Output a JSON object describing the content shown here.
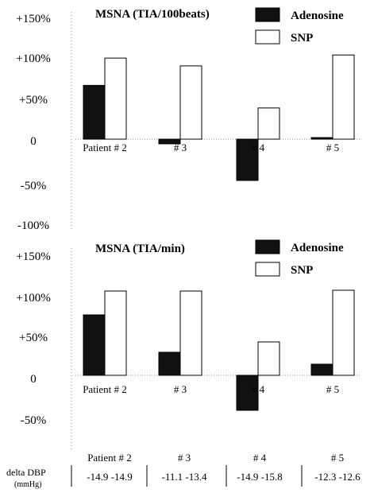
{
  "chart_data": [
    {
      "type": "bar",
      "title": "MSNA (TIA/100beats)",
      "categories": [
        "Patient # 2",
        "# 3",
        "# 4",
        "# 5"
      ],
      "series": [
        {
          "name": "Adenosine",
          "values": [
            69,
            -6,
            -53,
            2
          ]
        },
        {
          "name": "SNP",
          "values": [
            104,
            94,
            40,
            108
          ]
        }
      ],
      "yticks": [
        "+150%",
        "+100%",
        "+50%",
        "0",
        "-50%",
        "-100%"
      ],
      "ylim": [
        -100,
        150
      ],
      "legend": "top-right",
      "colors": {
        "Adenosine": "#111111",
        "SNP": "#ffffff"
      }
    },
    {
      "type": "bar",
      "title": "MSNA (TIA/min)",
      "categories": [
        "Patient # 2",
        "# 3",
        "# 4",
        "# 5"
      ],
      "series": [
        {
          "name": "Adenosine",
          "values": [
            76,
            29,
            -44,
            14
          ]
        },
        {
          "name": "SNP",
          "values": [
            106,
            106,
            42,
            107
          ]
        }
      ],
      "yticks": [
        "+150%",
        "+100%",
        "+50%",
        "0",
        "-50%"
      ],
      "ylim": [
        -60,
        150
      ],
      "legend": "top-right",
      "colors": {
        "Adenosine": "#111111",
        "SNP": "#ffffff"
      }
    }
  ],
  "bp_table": {
    "label_line1": "delta DBP",
    "label_line2": "(mmHg)",
    "headers": [
      "Patient # 2",
      "# 3",
      "# 4",
      "# 5"
    ],
    "values": [
      [
        "-14.9",
        "-14.9"
      ],
      [
        "-11.1",
        "-13.4"
      ],
      [
        "-14.9",
        "-15.8"
      ],
      [
        "-12.3",
        "-12.6"
      ]
    ]
  }
}
